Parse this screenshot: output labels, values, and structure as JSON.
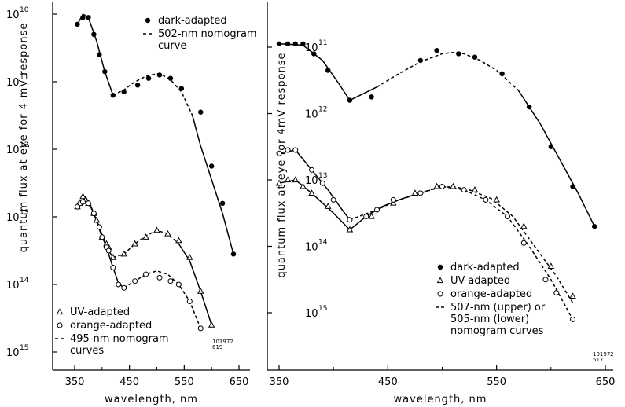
{
  "chart_data": [
    {
      "type": "scatter",
      "title": "",
      "xlabel": "wavelength, nm",
      "ylabel": "quantum flux at eye for 4-mV response",
      "xlim": [
        320,
        665
      ],
      "x_ticks": [
        "350",
        "450",
        "550",
        "650"
      ],
      "y_scale": "log, inverted (10^10 at top, 10^15 at bottom)",
      "y_ticks": [
        {
          "base": "10",
          "exp": "10"
        },
        {
          "base": "10",
          "exp": "11"
        },
        {
          "base": "10",
          "exp": "12"
        },
        {
          "base": "10",
          "exp": "13"
        },
        {
          "base": "10",
          "exp": "14"
        },
        {
          "base": "10",
          "exp": "15"
        }
      ],
      "ylim_exponent": [
        9.85,
        15.2
      ],
      "figure_code": [
        "101972",
        "619"
      ],
      "legend_top": [
        {
          "symbol": "filled-circle",
          "text": [
            "dark-adapted"
          ]
        },
        {
          "symbol": "dash",
          "text": [
            "502-nm nomogram",
            "curve"
          ]
        }
      ],
      "legend_bottom": [
        {
          "symbol": "open-triangle",
          "text": [
            "UV-adapted"
          ]
        },
        {
          "symbol": "open-circle",
          "text": [
            "orange-adapted"
          ]
        },
        {
          "symbol": "dash",
          "text": [
            "495-nm nomogram",
            "curves"
          ]
        }
      ],
      "series": [
        {
          "name": "dark-adapted",
          "marker": "filled-circle",
          "x": [
            355,
            365,
            375,
            385,
            395,
            405,
            420,
            440,
            465,
            485,
            505,
            525,
            545,
            580,
            600,
            620,
            640
          ],
          "log_flux": [
            10.15,
            10.05,
            10.05,
            10.3,
            10.6,
            10.85,
            11.2,
            11.15,
            11.05,
            10.95,
            10.9,
            10.95,
            11.1,
            11.45,
            12.25,
            12.8,
            13.55
          ]
        },
        {
          "name": "UV-adapted",
          "marker": "open-triangle",
          "x": [
            355,
            360,
            365,
            370,
            375,
            385,
            390,
            400,
            408,
            412,
            420,
            440,
            460,
            480,
            500,
            520,
            540,
            560,
            580,
            600
          ],
          "log_flux": [
            12.85,
            12.8,
            12.7,
            12.75,
            12.8,
            12.95,
            13.05,
            13.3,
            13.4,
            13.45,
            13.6,
            13.55,
            13.4,
            13.3,
            13.2,
            13.25,
            13.35,
            13.6,
            14.1,
            14.6
          ]
        },
        {
          "name": "orange-adapted",
          "marker": "open-circle",
          "x": [
            355,
            360,
            365,
            375,
            385,
            395,
            400,
            408,
            412,
            420,
            430,
            440,
            460,
            480,
            505,
            525,
            540,
            560,
            580
          ],
          "log_flux": [
            12.85,
            12.8,
            12.78,
            12.8,
            12.95,
            13.15,
            13.3,
            13.45,
            13.5,
            13.75,
            14.0,
            14.05,
            13.95,
            13.85,
            13.9,
            13.95,
            14.0,
            14.25,
            14.65
          ]
        }
      ],
      "curves": [
        {
          "series": "dark-adapted",
          "style": "solid",
          "x": [
            355,
            365,
            375,
            390,
            405,
            420
          ],
          "log_flux": [
            10.15,
            10.0,
            10.05,
            10.4,
            10.85,
            11.2
          ]
        },
        {
          "series": "dark-adapted",
          "style": "dashed",
          "x": [
            420,
            440,
            460,
            480,
            500,
            510,
            525,
            545,
            565
          ],
          "log_flux": [
            11.2,
            11.12,
            11.0,
            10.92,
            10.88,
            10.9,
            10.97,
            11.15,
            11.5
          ]
        },
        {
          "series": "dark-adapted",
          "style": "solid",
          "x": [
            565,
            580,
            600,
            620,
            640
          ],
          "log_flux": [
            11.5,
            11.95,
            12.45,
            12.95,
            13.55
          ]
        },
        {
          "series": "UV-adapted",
          "style": "solid",
          "x": [
            355,
            370,
            385,
            400,
            412,
            420
          ],
          "log_flux": [
            12.85,
            12.7,
            12.95,
            13.3,
            13.5,
            13.6
          ]
        },
        {
          "series": "UV-adapted",
          "style": "dashed",
          "x": [
            420,
            440,
            460,
            480,
            500,
            520,
            540
          ],
          "log_flux": [
            13.6,
            13.55,
            13.4,
            13.28,
            13.2,
            13.25,
            13.4
          ]
        },
        {
          "series": "UV-adapted",
          "style": "solid",
          "x": [
            540,
            560,
            580,
            600
          ],
          "log_flux": [
            13.4,
            13.65,
            14.1,
            14.6
          ]
        },
        {
          "series": "orange-adapted",
          "style": "solid",
          "x": [
            355,
            365,
            380,
            395,
            410,
            420,
            430,
            440
          ],
          "log_flux": [
            12.85,
            12.78,
            12.85,
            13.15,
            13.5,
            13.75,
            13.98,
            14.05
          ]
        },
        {
          "series": "orange-adapted",
          "style": "dashed",
          "x": [
            440,
            460,
            480,
            500,
            520,
            540,
            560,
            580
          ],
          "log_flux": [
            14.05,
            13.95,
            13.85,
            13.8,
            13.85,
            14.0,
            14.25,
            14.65
          ]
        }
      ]
    },
    {
      "type": "scatter",
      "title": "",
      "xlabel": "wavelength, nm",
      "ylabel": "quantum flux at eye for 4mV response",
      "xlim": [
        330,
        665
      ],
      "x_ticks": [
        "350",
        "450",
        "550",
        "650"
      ],
      "y_scale": "log, inverted (10^11 at top, 10^15 at bottom)",
      "y_ticks": [
        {
          "base": "10",
          "exp": "11"
        },
        {
          "base": "10",
          "exp": "12"
        },
        {
          "base": "10",
          "exp": "13"
        },
        {
          "base": "10",
          "exp": "14"
        },
        {
          "base": "10",
          "exp": "15"
        }
      ],
      "ylim_exponent": [
        10.55,
        15.85
      ],
      "figure_code": [
        "101972",
        "517"
      ],
      "legend": [
        {
          "symbol": "filled-circle",
          "text": [
            "dark-adapted"
          ]
        },
        {
          "symbol": "open-triangle",
          "text": [
            "UV-adapted"
          ]
        },
        {
          "symbol": "open-circle",
          "text": [
            "orange-adapted"
          ]
        },
        {
          "symbol": "dash",
          "text": [
            "507-nm (upper) or",
            "505-nm (lower)",
            "nomogram curves"
          ]
        }
      ],
      "series": [
        {
          "name": "dark-adapted",
          "marker": "filled-circle",
          "x": [
            350,
            358,
            365,
            372,
            382,
            395,
            415,
            435,
            480,
            495,
            515,
            530,
            555,
            580,
            600,
            620,
            640
          ],
          "log_flux": [
            10.95,
            10.95,
            10.95,
            10.95,
            11.1,
            11.35,
            11.8,
            11.75,
            11.2,
            11.05,
            11.1,
            11.15,
            11.4,
            11.9,
            12.5,
            13.1,
            13.7
          ]
        },
        {
          "name": "UV-adapted",
          "marker": "open-triangle",
          "x": [
            350,
            358,
            365,
            372,
            380,
            395,
            415,
            435,
            455,
            475,
            495,
            510,
            530,
            550,
            575,
            600,
            620
          ],
          "log_flux": [
            13.05,
            13.0,
            13.0,
            13.1,
            13.2,
            13.4,
            13.75,
            13.55,
            13.35,
            13.2,
            13.1,
            13.1,
            13.15,
            13.3,
            13.7,
            14.3,
            14.75
          ]
        },
        {
          "name": "orange-adapted",
          "marker": "open-circle",
          "x": [
            350,
            358,
            365,
            380,
            390,
            400,
            415,
            430,
            440,
            455,
            480,
            500,
            520,
            540,
            560,
            575,
            595,
            605,
            620
          ],
          "log_flux": [
            12.6,
            12.55,
            12.55,
            12.85,
            13.05,
            13.3,
            13.6,
            13.55,
            13.45,
            13.3,
            13.2,
            13.1,
            13.15,
            13.3,
            13.55,
            13.95,
            14.5,
            14.7,
            15.1
          ]
        }
      ],
      "curves": [
        {
          "series": "dark-adapted",
          "style": "solid",
          "x": [
            350,
            372,
            390,
            405,
            415,
            425,
            440
          ],
          "log_flux": [
            10.95,
            10.97,
            11.2,
            11.55,
            11.8,
            11.72,
            11.6
          ]
        },
        {
          "series": "dark-adapted",
          "style": "dashed",
          "x": [
            440,
            460,
            480,
            500,
            510,
            520,
            535,
            550,
            570
          ],
          "log_flux": [
            11.6,
            11.4,
            11.22,
            11.1,
            11.08,
            11.1,
            11.2,
            11.35,
            11.65
          ]
        },
        {
          "series": "dark-adapted",
          "style": "solid",
          "x": [
            570,
            590,
            610,
            625,
            640
          ],
          "log_flux": [
            11.65,
            12.15,
            12.75,
            13.2,
            13.7
          ]
        },
        {
          "series": "UV-adapted",
          "style": "solid",
          "x": [
            350,
            365,
            380,
            400,
            415
          ],
          "log_flux": [
            13.05,
            13.0,
            13.2,
            13.5,
            13.75
          ]
        },
        {
          "series": "UV-adapted",
          "style": "solid",
          "x": [
            415,
            430,
            445,
            460,
            475
          ],
          "log_flux": [
            13.75,
            13.55,
            13.4,
            13.3,
            13.22
          ]
        },
        {
          "series": "UV-adapted",
          "style": "dashed",
          "x": [
            475,
            495,
            510,
            525,
            545,
            565,
            585,
            605,
            620
          ],
          "log_flux": [
            13.22,
            13.12,
            13.1,
            13.15,
            13.28,
            13.55,
            14.0,
            14.45,
            14.85
          ]
        },
        {
          "series": "orange-adapted",
          "style": "solid",
          "x": [
            350,
            365,
            380,
            395,
            408,
            415
          ],
          "log_flux": [
            12.6,
            12.55,
            12.85,
            13.15,
            13.45,
            13.6
          ]
        },
        {
          "series": "orange-adapted",
          "style": "dashed",
          "x": [
            415,
            440,
            460,
            480,
            500,
            520,
            540,
            560,
            580,
            600,
            620
          ],
          "log_flux": [
            13.6,
            13.45,
            13.3,
            13.2,
            13.1,
            13.15,
            13.3,
            13.55,
            14.0,
            14.5,
            15.1
          ]
        }
      ]
    }
  ]
}
